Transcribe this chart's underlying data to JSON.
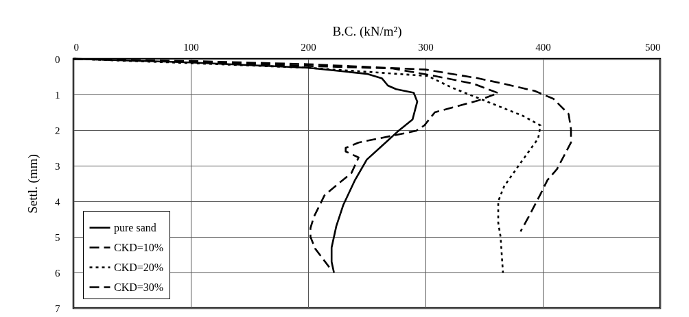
{
  "chart_data": {
    "type": "line",
    "xlabel": "B.C. (kN/m²)",
    "ylabel": "Settl. (mm)",
    "xlim": [
      0,
      500
    ],
    "xticks": [
      0,
      100,
      200,
      300,
      400,
      500
    ],
    "ylim": [
      7,
      0
    ],
    "yticks": [
      0,
      1,
      2,
      3,
      4,
      5,
      6,
      7
    ],
    "grid": true,
    "legend": "bottom left",
    "marker": "none",
    "series": [
      {
        "name": "pure sand",
        "color": "#000000",
        "line_style": "solid",
        "x": [
          0,
          100,
          200,
          250,
          263,
          268,
          275,
          290,
          293,
          289,
          276,
          266,
          250,
          240,
          230,
          224,
          220,
          220,
          222
        ],
        "values": [
          0,
          0.1,
          0.25,
          0.42,
          0.55,
          0.75,
          0.85,
          0.95,
          1.2,
          1.7,
          2.05,
          2.35,
          2.83,
          3.4,
          4.1,
          4.7,
          5.3,
          5.7,
          6
        ]
      },
      {
        "name": "CKD=10%",
        "color": "#000000",
        "line_style": "dashed",
        "x": [
          0,
          100,
          200,
          272,
          308,
          341,
          362,
          344,
          308,
          299,
          292,
          276,
          243,
          232,
          232,
          243,
          237,
          214,
          205,
          202,
          202,
          206,
          218
        ],
        "values": [
          0,
          0.08,
          0.2,
          0.27,
          0.48,
          0.7,
          0.96,
          1.18,
          1.5,
          1.87,
          2.02,
          2.13,
          2.35,
          2.5,
          2.6,
          2.77,
          3.2,
          3.83,
          4.43,
          4.75,
          5.0,
          5.33,
          5.85
        ]
      },
      {
        "name": "CKD=20%",
        "color": "#000000",
        "line_style": "dotted",
        "x": [
          0,
          100,
          200,
          302,
          322,
          367,
          383,
          398,
          396,
          383,
          367,
          362,
          362,
          364,
          366
        ],
        "values": [
          0,
          0.12,
          0.25,
          0.48,
          0.8,
          1.39,
          1.6,
          1.87,
          2.24,
          2.83,
          3.58,
          4.0,
          4.6,
          5.0,
          6.0
        ]
      },
      {
        "name": "CKD=30%",
        "color": "#000000",
        "line_style": "dashed",
        "x": [
          0,
          100,
          200,
          300,
          344,
          367,
          393,
          409,
          422,
          424,
          424,
          412,
          404,
          398,
          388,
          381
        ],
        "values": [
          0,
          0.06,
          0.15,
          0.3,
          0.54,
          0.7,
          0.9,
          1.12,
          1.55,
          1.98,
          2.35,
          3.1,
          3.4,
          3.8,
          4.43,
          4.85
        ]
      }
    ]
  }
}
